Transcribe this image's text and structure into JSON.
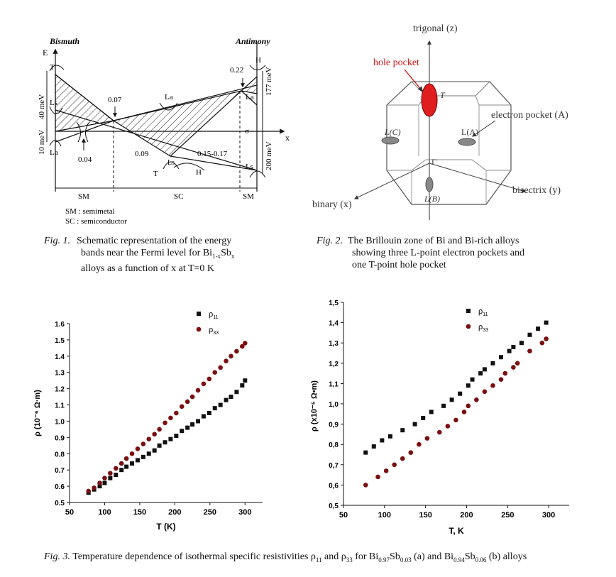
{
  "fig1": {
    "left_element": "Bismuth",
    "right_element": "Antimony",
    "energy_axis": "E",
    "x_axis": "x",
    "labels": {
      "T": "T",
      "Ls": "Ls",
      "La": "La",
      "H": "H",
      "e40": "40 meV",
      "e10": "10 meV",
      "e177": "177 meV",
      "e200": "200 meV",
      "v004": "0.04",
      "v007": "0.07",
      "v009": "0.09",
      "v015": "0.15-0.17",
      "v022": "0.22",
      "sm": "SM",
      "sc": "SC",
      "sigma": "σ"
    },
    "legend_sm": "SM : semimetal",
    "legend_sc": "SC : semiconductor",
    "caption_label": "Fig. 1.",
    "caption_lines": [
      "Schematic representation of the energy",
      "bands near the Fermi level for Bi",
      "alloys as a function of x at T=0 K"
    ]
  },
  "fig2": {
    "trigonal": "trigonal (z)",
    "hole_pocket": "hole pocket",
    "electron_pocket": "electron pocket (A)",
    "binary": "binary (x)",
    "bisectrix": "bisectrix (y)",
    "point_T": "T",
    "point_gamma": "Γ",
    "LC": "L(C)",
    "LA": "L(A)",
    "LB": "L(B)",
    "caption_label": "Fig. 2.",
    "caption_lines": [
      "The Brillouin zone of Bi and Bi-rich alloys",
      "showing three L-point electron pockets and",
      "one T-point hole pocket"
    ]
  },
  "chart_data": [
    {
      "type": "scatter",
      "xlabel": "T (K)",
      "ylabel": "ρ (10⁻⁶ Ω·m)",
      "xlim": [
        50,
        325
      ],
      "ylim": [
        0.5,
        1.6
      ],
      "xticks": [
        "50",
        "100",
        "150",
        "200",
        "250",
        "300"
      ],
      "yticks": [
        "0.5",
        "0.6",
        "0.7",
        "0.8",
        "0.9",
        "1.0",
        "1.1",
        "1.2",
        "1.3",
        "1.4",
        "1.5",
        "1.6"
      ],
      "legend_position": "top-left",
      "series": [
        {
          "name": "ρ11",
          "color": "#111111",
          "marker": "square",
          "x": [
            77,
            85,
            93,
            100,
            108,
            116,
            124,
            131,
            139,
            147,
            155,
            163,
            171,
            178,
            186,
            194,
            202,
            210,
            218,
            225,
            233,
            241,
            249,
            257,
            265,
            273,
            280,
            288,
            296,
            300
          ],
          "y": [
            0.56,
            0.58,
            0.6,
            0.62,
            0.65,
            0.67,
            0.7,
            0.72,
            0.74,
            0.76,
            0.78,
            0.8,
            0.82,
            0.85,
            0.87,
            0.89,
            0.91,
            0.94,
            0.96,
            0.98,
            1.0,
            1.03,
            1.05,
            1.08,
            1.1,
            1.13,
            1.15,
            1.18,
            1.22,
            1.25
          ]
        },
        {
          "name": "ρ33",
          "color": "#7a1010",
          "marker": "circle",
          "x": [
            77,
            85,
            93,
            100,
            108,
            116,
            124,
            131,
            139,
            147,
            155,
            163,
            171,
            178,
            186,
            194,
            202,
            210,
            218,
            225,
            233,
            241,
            249,
            257,
            265,
            273,
            280,
            288,
            296,
            300
          ],
          "y": [
            0.57,
            0.59,
            0.62,
            0.65,
            0.68,
            0.71,
            0.74,
            0.77,
            0.8,
            0.83,
            0.86,
            0.89,
            0.92,
            0.95,
            0.99,
            1.02,
            1.05,
            1.09,
            1.12,
            1.15,
            1.19,
            1.23,
            1.26,
            1.3,
            1.33,
            1.37,
            1.4,
            1.43,
            1.46,
            1.48
          ]
        }
      ]
    },
    {
      "type": "scatter",
      "xlabel": "T, K",
      "ylabel": "ρ (x10⁻⁶ Ω•m)",
      "xlim": [
        50,
        325
      ],
      "ylim": [
        0.5,
        1.5
      ],
      "xticks": [
        "50",
        "100",
        "150",
        "200",
        "250",
        "300"
      ],
      "yticks": [
        "0,5",
        "0,6",
        "0,7",
        "0,8",
        "0,9",
        "1,0",
        "1,1",
        "1,2",
        "1,3",
        "1,4",
        "1,5"
      ],
      "legend_position": "top-left",
      "series": [
        {
          "name": "ρ11",
          "color": "#111111",
          "marker": "square",
          "x": [
            77,
            87,
            97,
            107,
            122,
            137,
            147,
            157,
            172,
            182,
            192,
            202,
            207,
            217,
            222,
            232,
            242,
            252,
            257,
            267,
            277,
            287,
            297
          ],
          "y": [
            0.76,
            0.79,
            0.82,
            0.84,
            0.87,
            0.9,
            0.93,
            0.96,
            0.99,
            1.02,
            1.05,
            1.09,
            1.12,
            1.15,
            1.17,
            1.2,
            1.23,
            1.26,
            1.28,
            1.3,
            1.34,
            1.37,
            1.4
          ]
        },
        {
          "name": "ρ33",
          "color": "#7a1010",
          "marker": "circle",
          "x": [
            77,
            92,
            102,
            112,
            122,
            132,
            142,
            152,
            167,
            177,
            187,
            197,
            202,
            212,
            222,
            232,
            242,
            247,
            257,
            262,
            277,
            292,
            297
          ],
          "y": [
            0.6,
            0.64,
            0.67,
            0.7,
            0.73,
            0.76,
            0.8,
            0.83,
            0.86,
            0.89,
            0.92,
            0.96,
            0.99,
            1.02,
            1.06,
            1.09,
            1.12,
            1.15,
            1.18,
            1.2,
            1.26,
            1.3,
            1.32
          ]
        }
      ]
    }
  ],
  "fig3": {
    "caption_label": "Fig. 3.",
    "caption_text": " Temperature dependence of isothermal specific resistivities ρ",
    "caption_and": " and ρ",
    "caption_for": " for Bi",
    "caption_a": " (a) and Bi",
    "caption_b": " (b) alloys"
  }
}
